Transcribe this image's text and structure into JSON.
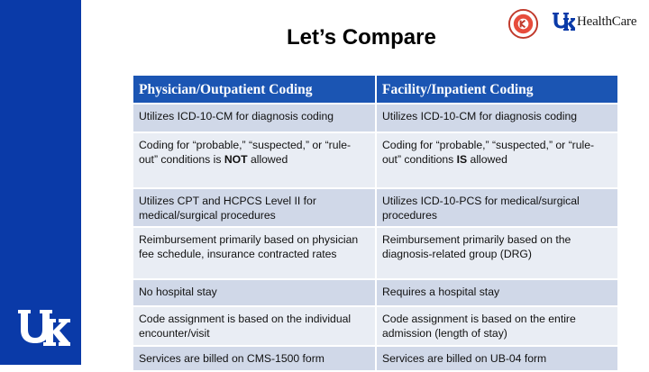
{
  "slide": {
    "title": "Let’s Compare",
    "header_logo_text": "HealthCare",
    "brand_colors": {
      "sidebar": "#0a3aa8",
      "header": "#1b55b3",
      "row_odd": "#d0d8e8",
      "row_even": "#e9edf4"
    }
  },
  "table": {
    "headers": [
      "Physician/Outpatient Coding",
      "Facility/Inpatient Coding"
    ],
    "rows": [
      {
        "left": "Utilizes ICD-10-CM for diagnosis coding",
        "right": "Utilizes ICD-10-CM for diagnosis coding"
      },
      {
        "left_pre": "Coding for “probable,” “suspected,” or “rule-out” conditions is ",
        "left_em": "NOT",
        "left_post": " allowed",
        "right_pre": "Coding for “probable,” “suspected,” or “rule-out” conditions ",
        "right_em": "IS",
        "right_post": " allowed"
      },
      {
        "left": "Utilizes CPT and HCPCS Level II for medical/surgical procedures",
        "right": "Utilizes ICD-10-PCS for medical/surgical procedures"
      },
      {
        "left": "Reimbursement primarily based on physician fee schedule, insurance contracted rates",
        "right": "Reimbursement primarily based on the diagnosis-related group (DRG)"
      },
      {
        "left": "No hospital stay",
        "right": "Requires a hospital stay"
      },
      {
        "left": "Code assignment is based on the individual encounter/visit",
        "right": "Code assignment is based on the entire admission (length of stay)"
      },
      {
        "left": "Services are billed on CMS-1500 form",
        "right": "Services are billed on UB-04 form"
      }
    ]
  }
}
